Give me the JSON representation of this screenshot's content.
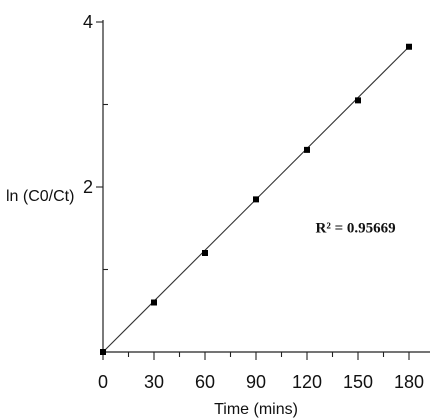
{
  "chart_data": {
    "type": "scatter",
    "title": "",
    "xlabel": "Time (mins)",
    "ylabel": "ln (C0/Ct)",
    "x_ticks": [
      "0",
      "30",
      "60",
      "90",
      "120",
      "150",
      "180"
    ],
    "y_ticks": [
      "2",
      "4"
    ],
    "xlim": [
      0,
      180
    ],
    "ylim": [
      0,
      4
    ],
    "grid": false,
    "legend": "none",
    "series": [
      {
        "points": [
          {
            "x": 0,
            "y": 0.0
          },
          {
            "x": 30,
            "y": 0.6
          },
          {
            "x": 60,
            "y": 1.2
          },
          {
            "x": 90,
            "y": 1.85
          },
          {
            "x": 120,
            "y": 2.45
          },
          {
            "x": 150,
            "y": 3.05
          },
          {
            "x": 180,
            "y": 3.7
          }
        ]
      }
    ],
    "trendline": {
      "type": "linear",
      "start": {
        "x": 0,
        "y": 0.0
      },
      "end": {
        "x": 180,
        "y": 3.7
      }
    },
    "annotations": [
      {
        "text": "R² = 0.95669",
        "x": 125,
        "y": 1.45
      }
    ]
  }
}
